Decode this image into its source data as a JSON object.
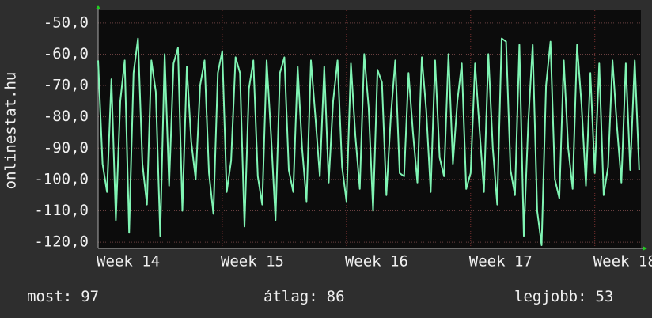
{
  "chart_data": {
    "type": "line",
    "ylabel": "onlinestat.hu",
    "x": [
      0,
      0.25,
      0.5,
      0.75,
      1,
      1.25,
      1.5,
      1.75,
      2,
      2.25,
      2.5,
      2.75,
      3,
      3.25,
      3.5,
      3.75,
      4,
      4.25,
      4.5,
      4.75,
      5,
      5.25,
      5.5,
      5.75,
      6,
      6.25,
      6.5,
      6.75,
      7,
      7.25,
      7.5,
      7.75,
      8,
      8.25,
      8.5,
      8.75,
      9,
      9.25,
      9.5,
      9.75,
      10,
      10.25,
      10.5,
      10.75,
      11,
      11.25,
      11.5,
      11.75,
      12,
      12.25,
      12.5,
      12.75,
      13,
      13.25,
      13.5,
      13.75,
      14,
      14.25,
      14.5,
      14.75,
      15,
      15.25,
      15.5,
      15.75,
      16,
      16.25,
      16.5,
      16.75,
      17,
      17.25,
      17.5,
      17.75,
      18,
      18.25,
      18.5,
      18.75,
      19,
      19.25,
      19.5,
      19.75,
      20,
      20.25,
      20.5,
      20.75,
      21,
      21.25,
      21.5,
      21.75,
      22,
      22.25,
      22.5,
      22.75,
      23,
      23.25,
      23.5,
      23.75,
      24,
      24.25,
      24.5,
      24.75,
      25,
      25.25,
      25.5,
      25.75,
      26,
      26.25,
      26.5,
      26.75,
      27,
      27.25,
      27.5,
      27.75,
      28,
      28.25,
      28.5,
      28.75,
      29,
      29.25,
      29.5,
      29.75,
      30,
      30.25,
      30.5
    ],
    "series": [
      {
        "color": "#80f5b4",
        "values": [
          -62,
          -95,
          -104,
          -68,
          -113,
          -75,
          -62,
          -117,
          -66,
          -55,
          -95,
          -108,
          -62,
          -72,
          -118,
          -60,
          -102,
          -63,
          -58,
          -110,
          -64,
          -88,
          -100,
          -70,
          -62,
          -98,
          -111,
          -66,
          -59,
          -104,
          -94,
          -61,
          -66,
          -115,
          -71,
          -62,
          -99,
          -108,
          -62,
          -86,
          -113,
          -66,
          -61,
          -97,
          -104,
          -64,
          -90,
          -107,
          -62,
          -80,
          -99,
          -64,
          -101,
          -75,
          -62,
          -96,
          -107,
          -63,
          -86,
          -103,
          -60,
          -77,
          -110,
          -65,
          -69,
          -105,
          -80,
          -62,
          -98,
          -99,
          -66,
          -85,
          -101,
          -61,
          -78,
          -104,
          -62,
          -93,
          -99,
          -60,
          -95,
          -75,
          -63,
          -103,
          -98,
          -63,
          -84,
          -104,
          -60,
          -90,
          -108,
          -55,
          -56,
          -97,
          -105,
          -57,
          -118,
          -82,
          -57,
          -110,
          -121,
          -70,
          -56,
          -100,
          -106,
          -62,
          -90,
          -103,
          -57,
          -76,
          -102,
          -66,
          -98,
          -63,
          -105,
          -96,
          -62,
          -83,
          -101,
          -63,
          -97,
          -62,
          -97
        ]
      }
    ],
    "xlim": [
      0,
      30.6
    ],
    "xticks": [
      {
        "value": 0,
        "label": "Week 14"
      },
      {
        "value": 7,
        "label": "Week 15"
      },
      {
        "value": 14,
        "label": "Week 16"
      },
      {
        "value": 21,
        "label": "Week 17"
      },
      {
        "value": 28,
        "label": "Week 18"
      }
    ],
    "ylim": [
      -122,
      -46
    ],
    "yticks": [
      {
        "value": -50,
        "label": "-50,0"
      },
      {
        "value": -60,
        "label": "-60,0"
      },
      {
        "value": -70,
        "label": "-70,0"
      },
      {
        "value": -80,
        "label": "-80,0"
      },
      {
        "value": -90,
        "label": "-90,0"
      },
      {
        "value": -100,
        "label": "-100,0"
      },
      {
        "value": -110,
        "label": "-110,0"
      },
      {
        "value": -120,
        "label": "-120,0"
      }
    ],
    "grid": true,
    "stats": [
      {
        "label": "most:",
        "value": 97
      },
      {
        "label": "átlag:",
        "value": 86
      },
      {
        "label": "legjobb:",
        "value": 53
      }
    ]
  }
}
